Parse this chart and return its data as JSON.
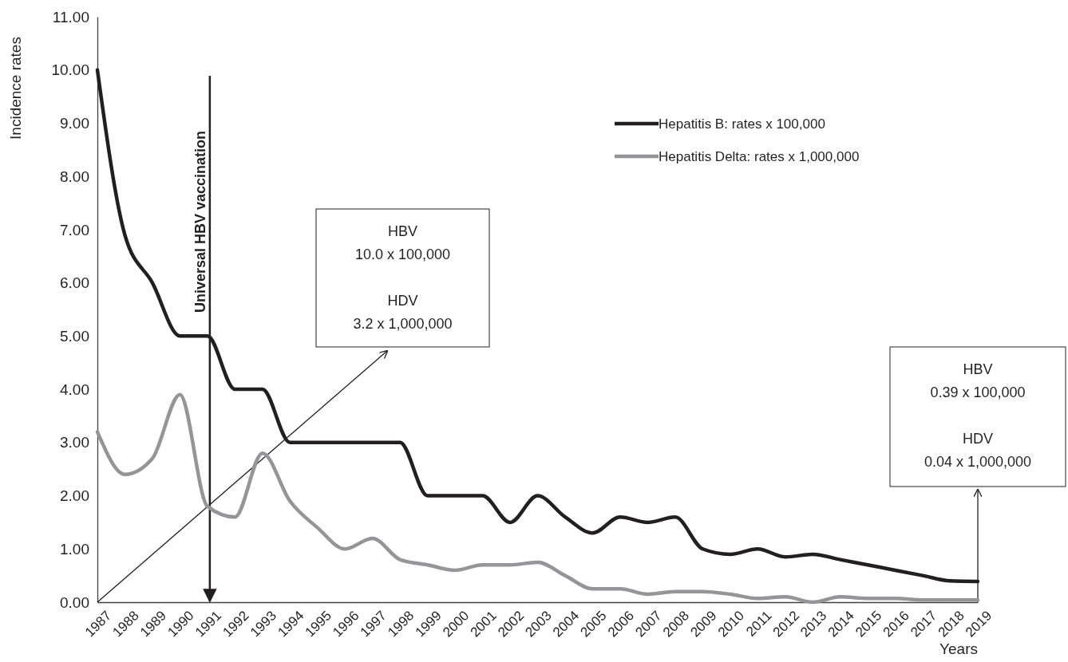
{
  "chart_data": {
    "type": "line",
    "xlabel": "Years",
    "ylabel": "Incidence rates",
    "categories": [
      "1987",
      "1988",
      "1989",
      "1990",
      "1991",
      "1992",
      "1993",
      "1994",
      "1995",
      "1996",
      "1997",
      "1998",
      "1999",
      "2000",
      "2001",
      "2002",
      "2003",
      "2004",
      "2005",
      "2006",
      "2007",
      "2008",
      "2009",
      "2010",
      "2011",
      "2012",
      "2013",
      "2014",
      "2015",
      "2016",
      "2017",
      "2018",
      "2019"
    ],
    "series": [
      {
        "name": "Hepatitis B: rates x 100,000",
        "color": "#231f20",
        "values": [
          10.0,
          6.9,
          6.0,
          5.0,
          5.0,
          4.0,
          4.0,
          3.0,
          3.0,
          3.0,
          3.0,
          3.0,
          2.0,
          2.0,
          2.0,
          1.5,
          2.0,
          1.6,
          1.3,
          1.6,
          1.5,
          1.6,
          1.0,
          0.9,
          1.0,
          0.85,
          0.9,
          0.8,
          0.7,
          0.6,
          0.5,
          0.4,
          0.39
        ]
      },
      {
        "name": "Hepatitis Delta: rates x 1,000,000",
        "color": "#939598",
        "values": [
          3.2,
          2.4,
          2.7,
          3.9,
          1.8,
          1.6,
          2.8,
          1.9,
          1.4,
          1.0,
          1.2,
          0.8,
          0.7,
          0.6,
          0.7,
          0.7,
          0.75,
          0.5,
          0.25,
          0.25,
          0.15,
          0.2,
          0.2,
          0.15,
          0.07,
          0.1,
          0.0,
          0.1,
          0.07,
          0.07,
          0.04,
          0.04,
          0.04
        ]
      }
    ],
    "ylim": [
      0,
      11
    ],
    "yticks": [
      {
        "value": 0,
        "label": "0.00"
      },
      {
        "value": 1,
        "label": "1.00"
      },
      {
        "value": 2,
        "label": "2.00"
      },
      {
        "value": 3,
        "label": "3.00"
      },
      {
        "value": 4,
        "label": "4.00"
      },
      {
        "value": 5,
        "label": "5.00"
      },
      {
        "value": 6,
        "label": "6.00"
      },
      {
        "value": 7,
        "label": "7.00"
      },
      {
        "value": 8,
        "label": "8.00"
      },
      {
        "value": 9,
        "label": "9.00"
      },
      {
        "value": 10,
        "label": "10.00"
      },
      {
        "value": 11,
        "label": "11.00"
      }
    ],
    "ref_lines": [
      {
        "axis": "x",
        "value": "1991",
        "label": "Universal HBV vaccination",
        "color": "#231f20"
      }
    ],
    "annotations": [
      "HBV\n10.0 x 100,000\n\nHDV\n3.2 x 1,000,000",
      "HBV\n0.39 x 100,000\n\nHDV\n0.04 x 1,000,000"
    ],
    "legend": "top right",
    "grid": false,
    "marker": "none",
    "line_style": "solid"
  }
}
